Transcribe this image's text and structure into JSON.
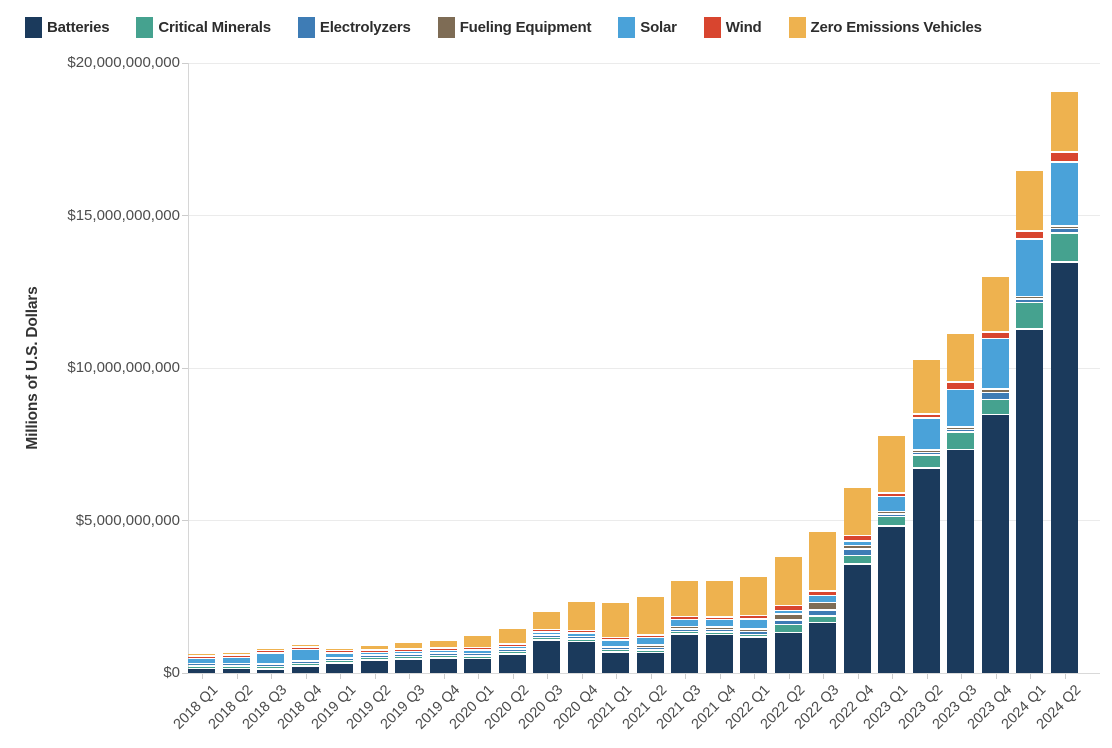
{
  "legend": {
    "items": [
      {
        "label": "Batteries",
        "color": "#1b3a5c"
      },
      {
        "label": "Critical Minerals",
        "color": "#45a28f"
      },
      {
        "label": "Electrolyzers",
        "color": "#3e7cb5"
      },
      {
        "label": "Fueling Equipment",
        "color": "#7e6c55"
      },
      {
        "label": "Solar",
        "color": "#4aa2d9"
      },
      {
        "label": "Wind",
        "color": "#d8452f"
      },
      {
        "label": "Zero Emissions Vehicles",
        "color": "#eeb24f"
      }
    ]
  },
  "y_axis": {
    "title": "Millions of U.S. Dollars",
    "tick_labels": [
      "$0",
      "$5,000,000,000",
      "$10,000,000,000",
      "$15,000,000,000",
      "$20,000,000,000"
    ],
    "tick_values_billions": [
      0,
      5,
      10,
      15,
      20
    ]
  },
  "chart_data": {
    "type": "bar",
    "stacked": true,
    "title": "",
    "xlabel": "",
    "ylabel": "Millions of U.S. Dollars",
    "ylim_billions": [
      0,
      20
    ],
    "grid": "horizontal",
    "legend_position": "top",
    "unit": "billions of U.S. dollars (estimated from pixels)",
    "categories": [
      "2018 Q1",
      "2018 Q2",
      "2018 Q3",
      "2018 Q4",
      "2019 Q1",
      "2019 Q2",
      "2019 Q3",
      "2019 Q4",
      "2020 Q1",
      "2020 Q2",
      "2020 Q3",
      "2020 Q4",
      "2021 Q1",
      "2021 Q2",
      "2021 Q3",
      "2021 Q4",
      "2022 Q1",
      "2022 Q2",
      "2022 Q3",
      "2022 Q4",
      "2023 Q1",
      "2023 Q2",
      "2023 Q3",
      "2023 Q4",
      "2024 Q1",
      "2024 Q2"
    ],
    "series": [
      {
        "name": "Batteries",
        "color": "#1b3a5c",
        "values": [
          0.17,
          0.17,
          0.15,
          0.26,
          0.36,
          0.45,
          0.48,
          0.51,
          0.5,
          0.65,
          1.1,
          1.06,
          0.72,
          0.7,
          1.3,
          1.28,
          1.2,
          1.35,
          1.68,
          3.6,
          4.85,
          6.74,
          7.36,
          8.5,
          11.3,
          13.5
        ]
      },
      {
        "name": "Critical Minerals",
        "color": "#45a28f",
        "values": [
          0.01,
          0.01,
          0.01,
          0.01,
          0.02,
          0.02,
          0.02,
          0.02,
          0.04,
          0.03,
          0.02,
          0.03,
          0.03,
          0.04,
          0.05,
          0.05,
          0.08,
          0.26,
          0.22,
          0.27,
          0.3,
          0.43,
          0.56,
          0.5,
          0.88,
          0.95
        ]
      },
      {
        "name": "Electrolyzers",
        "color": "#3e7cb5",
        "values": [
          0.02,
          0.02,
          0.02,
          0.02,
          0.02,
          0.02,
          0.02,
          0.02,
          0.03,
          0.03,
          0.03,
          0.04,
          0.05,
          0.08,
          0.06,
          0.06,
          0.1,
          0.15,
          0.19,
          0.22,
          0.06,
          0.05,
          0.08,
          0.23,
          0.1,
          0.15
        ]
      },
      {
        "name": "Fueling Equipment",
        "color": "#7e6c55",
        "values": [
          0,
          0,
          0,
          0,
          0,
          0,
          0,
          0,
          0,
          0,
          0,
          0,
          0,
          0.01,
          0.01,
          0.01,
          0.02,
          0.2,
          0.24,
          0.11,
          0.02,
          0.06,
          0.05,
          0.1,
          0.05,
          0.05
        ]
      },
      {
        "name": "Solar",
        "color": "#4aa2d9",
        "values": [
          0.17,
          0.2,
          0.37,
          0.38,
          0.16,
          0.07,
          0.08,
          0.09,
          0.12,
          0.08,
          0.1,
          0.12,
          0.22,
          0.25,
          0.23,
          0.25,
          0.33,
          0.12,
          0.23,
          0.16,
          0.5,
          1.05,
          1.24,
          1.67,
          1.9,
          2.1
        ]
      },
      {
        "name": "Wind",
        "color": "#d8452f",
        "values": [
          0.01,
          0.01,
          0.01,
          0.02,
          0.01,
          0.01,
          0.02,
          0.02,
          0.02,
          0.03,
          0.02,
          0.03,
          0.03,
          0.08,
          0.1,
          0.08,
          0.12,
          0.16,
          0.16,
          0.17,
          0.12,
          0.13,
          0.25,
          0.2,
          0.26,
          0.33
        ]
      },
      {
        "name": "Zero Emissions Vehicles",
        "color": "#eeb24f",
        "values": [
          0.07,
          0.05,
          0.07,
          0.07,
          0.07,
          0.17,
          0.24,
          0.24,
          0.4,
          0.53,
          0.62,
          0.95,
          1.15,
          1.25,
          1.2,
          1.2,
          1.3,
          1.6,
          1.96,
          1.6,
          1.9,
          1.8,
          1.6,
          1.85,
          2.0,
          2.0
        ]
      }
    ]
  }
}
